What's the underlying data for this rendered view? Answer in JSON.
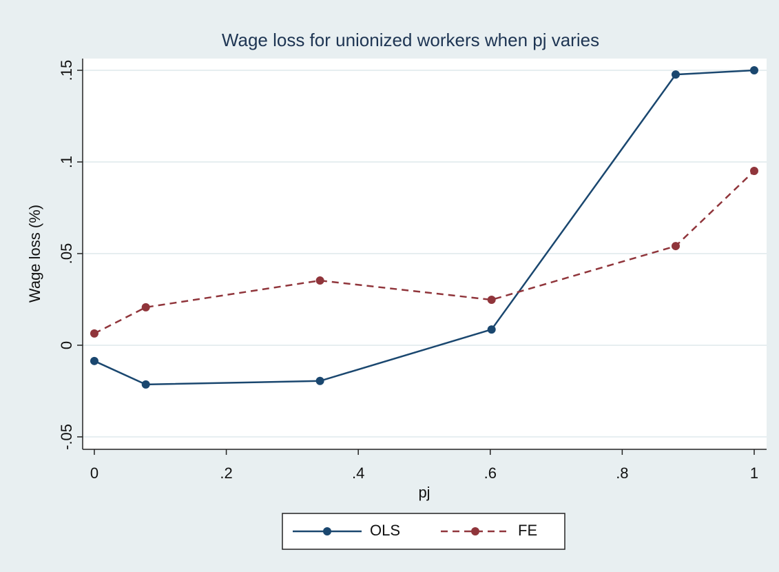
{
  "chart_data": {
    "type": "line",
    "title": "Wage loss for unionized workers when pj varies",
    "x_label": "pj",
    "y_label": "Wage loss (%)",
    "x": [
      0,
      0.078,
      0.342,
      0.602,
      0.881,
      1
    ],
    "series": [
      {
        "name": "OLS",
        "color": "#1a476f",
        "linestyle": "solid",
        "values": [
          -0.0086,
          -0.0214,
          -0.0195,
          0.0086,
          0.1477,
          0.15
        ]
      },
      {
        "name": "FE",
        "color": "#90353b",
        "linestyle": "dashed",
        "values": [
          0.0064,
          0.0207,
          0.0353,
          0.0248,
          0.0541,
          0.0951
        ]
      }
    ],
    "xlim": [
      -0.0177,
      1.0188
    ],
    "ylim": [
      -0.0568,
      0.1564
    ],
    "xticks": [
      0,
      {
        "value": 0.2,
        "label": ".2"
      },
      {
        "value": 0.4,
        "label": ".4"
      },
      {
        "value": 0.6,
        "label": ".6"
      },
      {
        "value": 0.8,
        "label": ".8"
      },
      1
    ],
    "yticks": [
      {
        "value": -0.05,
        "label": "-.05"
      },
      0,
      {
        "value": 0.05,
        "label": ".05"
      },
      {
        "value": 0.1,
        "label": ".1"
      },
      {
        "value": 0.15,
        "label": ".15"
      }
    ],
    "grid": true,
    "legend": "bottom"
  }
}
